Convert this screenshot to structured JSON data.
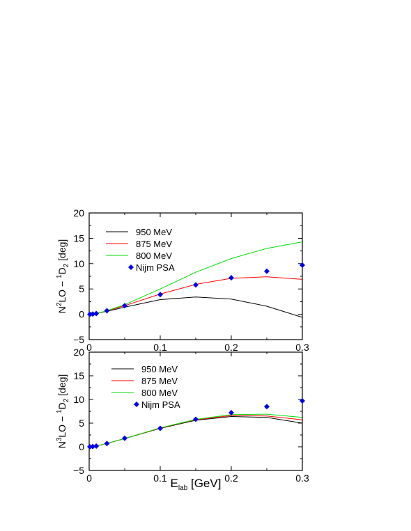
{
  "chart_data": [
    {
      "type": "line",
      "ylabel": {
        "prefix": "N",
        "sup1": "2",
        "mid": "LO − ",
        "sup2": "1",
        "letter": "D",
        "sub": "2",
        "suffix": " [deg]"
      },
      "xlim": [
        0,
        0.3
      ],
      "ylim": [
        -5,
        20
      ],
      "x_ticks": [
        "0",
        "0.1",
        "0.2",
        "0.3"
      ],
      "y_ticks": [
        "−5",
        "0",
        "5",
        "10",
        "15",
        "20"
      ],
      "series": [
        {
          "name": "950 MeV",
          "color": "#000000",
          "x": [
            0,
            0.005,
            0.01,
            0.025,
            0.05,
            0.1,
            0.15,
            0.2,
            0.25,
            0.3
          ],
          "y": [
            0,
            0.05,
            0.15,
            0.6,
            1.4,
            2.9,
            3.4,
            3.0,
            1.6,
            -0.6
          ]
        },
        {
          "name": "875 MeV",
          "color": "#ff0000",
          "x": [
            0,
            0.005,
            0.01,
            0.025,
            0.05,
            0.1,
            0.15,
            0.2,
            0.25,
            0.3
          ],
          "y": [
            0,
            0.05,
            0.15,
            0.65,
            1.7,
            4.0,
            5.9,
            7.1,
            7.4,
            6.9
          ]
        },
        {
          "name": "800 MeV",
          "color": "#00dd00",
          "x": [
            0,
            0.005,
            0.01,
            0.025,
            0.05,
            0.1,
            0.15,
            0.2,
            0.25,
            0.3
          ],
          "y": [
            0,
            0.05,
            0.15,
            0.7,
            1.9,
            5.0,
            8.3,
            11.0,
            13.0,
            14.3
          ]
        }
      ],
      "points": {
        "name": "Nijm PSA",
        "color": "#0000dd",
        "x": [
          0.001,
          0.005,
          0.01,
          0.025,
          0.05,
          0.1,
          0.15,
          0.2,
          0.25,
          0.3
        ],
        "y": [
          0,
          0.05,
          0.15,
          0.7,
          1.7,
          3.9,
          5.8,
          7.2,
          8.5,
          9.7
        ]
      }
    },
    {
      "type": "line",
      "ylabel": {
        "prefix": "N",
        "sup1": "3",
        "mid": "LO − ",
        "sup2": "1",
        "letter": "D",
        "sub": "2",
        "suffix": " [deg]"
      },
      "xlabel": {
        "letter": "E",
        "sub": "lab",
        "suffix": " [GeV]"
      },
      "xlim": [
        0,
        0.3
      ],
      "ylim": [
        -5,
        20
      ],
      "x_ticks": [
        "0",
        "0.1",
        "0.2",
        "0.3"
      ],
      "y_ticks": [
        "−5",
        "0",
        "5",
        "10",
        "15",
        "20"
      ],
      "series": [
        {
          "name": "950 MeV",
          "color": "#000000",
          "x": [
            0,
            0.005,
            0.01,
            0.025,
            0.05,
            0.1,
            0.15,
            0.2,
            0.25,
            0.3
          ],
          "y": [
            0,
            0.05,
            0.15,
            0.7,
            1.75,
            3.9,
            5.6,
            6.4,
            6.2,
            5.0
          ]
        },
        {
          "name": "875 MeV",
          "color": "#ff0000",
          "x": [
            0,
            0.005,
            0.01,
            0.025,
            0.05,
            0.1,
            0.15,
            0.2,
            0.25,
            0.3
          ],
          "y": [
            0,
            0.05,
            0.15,
            0.7,
            1.75,
            3.95,
            5.7,
            6.6,
            6.5,
            5.7
          ]
        },
        {
          "name": "800 MeV",
          "color": "#00dd00",
          "x": [
            0,
            0.005,
            0.01,
            0.025,
            0.05,
            0.1,
            0.15,
            0.2,
            0.25,
            0.3
          ],
          "y": [
            0,
            0.05,
            0.15,
            0.7,
            1.75,
            4.0,
            5.8,
            6.8,
            6.9,
            6.2
          ]
        }
      ],
      "points": {
        "name": "Nijm PSA",
        "color": "#0000dd",
        "x": [
          0.001,
          0.005,
          0.01,
          0.025,
          0.05,
          0.1,
          0.15,
          0.2,
          0.25,
          0.3
        ],
        "y": [
          0,
          0.05,
          0.15,
          0.7,
          1.8,
          3.9,
          5.8,
          7.2,
          8.5,
          9.7
        ]
      }
    }
  ]
}
